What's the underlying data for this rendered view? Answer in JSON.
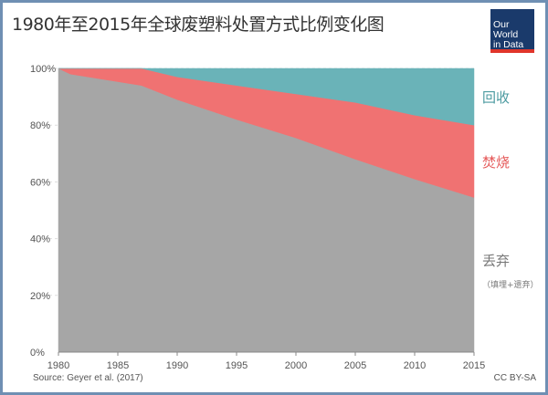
{
  "title": "1980年至2015年全球废塑料处置方式比例变化图",
  "logo": {
    "line1": "Our World",
    "line2": "in Data"
  },
  "source": "Source: Geyer et al. (2017)",
  "license": "CC BY-SA",
  "colors": {
    "discard": "#a6a6a6",
    "incinerate": "#f07272",
    "recycle": "#6ab3b8"
  },
  "chart_data": {
    "type": "area",
    "stacked": true,
    "title": "1980年至2015年全球废塑料处置方式比例变化图",
    "x": [
      1980,
      1981,
      1987,
      1990,
      1995,
      2000,
      2005,
      2010,
      2015
    ],
    "series": [
      {
        "name": "丢弃",
        "sublabel": "（填埋+遗弃）",
        "values": [
          100,
          98,
          94,
          89,
          82,
          75.5,
          68,
          61,
          54.5
        ]
      },
      {
        "name": "焚烧",
        "values": [
          0,
          2,
          6,
          8,
          12,
          15.5,
          20,
          22.5,
          25.5
        ]
      },
      {
        "name": "回收",
        "values": [
          0,
          0,
          0,
          3,
          6,
          9,
          12,
          16.5,
          20
        ]
      }
    ],
    "xlim": [
      1980,
      2015
    ],
    "ylim": [
      0,
      100
    ],
    "yticks": [
      "0%",
      "20%",
      "40%",
      "60%",
      "80%",
      "100%"
    ],
    "xticks": [
      1980,
      1985,
      1990,
      1995,
      2000,
      2005,
      2010,
      2015
    ],
    "grid": true,
    "legend": "right"
  }
}
